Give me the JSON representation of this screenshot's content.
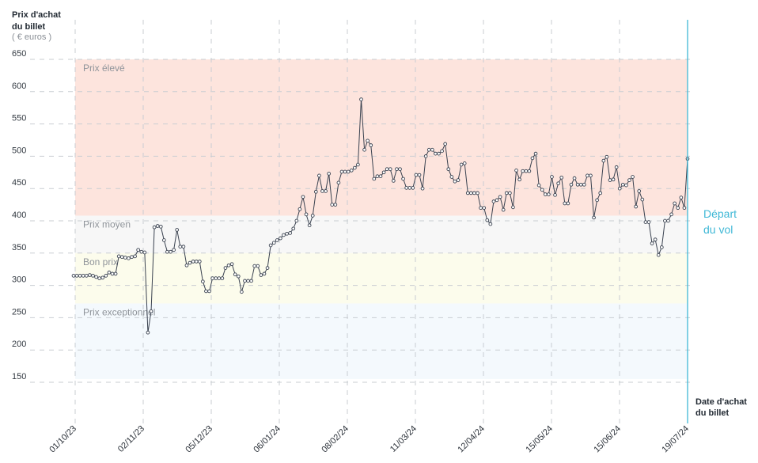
{
  "chart_data": {
    "type": "line",
    "ylabel": [
      "Prix d'achat",
      "du billet"
    ],
    "yunit": "( € euros )",
    "xlabel": [
      "Date d'achat",
      "du billet"
    ],
    "yticks": [
      150,
      200,
      250,
      300,
      350,
      400,
      450,
      500,
      550,
      600,
      650
    ],
    "xticks": [
      "01/10/23",
      "02/11/23",
      "05/12/23",
      "06/01/24",
      "08/02/24",
      "11/03/24",
      "12/04/24",
      "15/05/24",
      "15/06/24",
      "19/07/24"
    ],
    "ylim": [
      100,
      650
    ],
    "grid": true,
    "bands": [
      {
        "label": "Prix élevé",
        "from": 408,
        "to": 650,
        "color": "#fde4dd"
      },
      {
        "label": "Prix moyen",
        "from": 350,
        "to": 408,
        "color": "#f7f7f7"
      },
      {
        "label": "Bon prix",
        "from": 272,
        "to": 350,
        "color": "#fcfcec"
      },
      {
        "label": "Prix exceptionnel",
        "from": 155,
        "to": 272,
        "color": "#f4f9fd"
      }
    ],
    "annotation": [
      "Départ",
      "du vol"
    ],
    "line_color": "#3a4250",
    "depart_color": "#3fb8d6",
    "series": [
      {
        "values": [
          315,
          315,
          315,
          315,
          315,
          316,
          315,
          313,
          311,
          312,
          315,
          320,
          318,
          318,
          345,
          344,
          343,
          342,
          344,
          345,
          355,
          352,
          351,
          227,
          260,
          390,
          392,
          391,
          370,
          352,
          352,
          355,
          386,
          360,
          360,
          331,
          335,
          337,
          337,
          337,
          306,
          291,
          291,
          311,
          311,
          311,
          311,
          327,
          331,
          333,
          317,
          314,
          290,
          307,
          307,
          307,
          330,
          330,
          316,
          318,
          327,
          362,
          366,
          370,
          373,
          378,
          380,
          381,
          388,
          400,
          418,
          437,
          410,
          393,
          408,
          445,
          470,
          446,
          446,
          473,
          425,
          425,
          459,
          476,
          476,
          476,
          478,
          482,
          487,
          588,
          510,
          524,
          517,
          465,
          469,
          469,
          475,
          480,
          480,
          462,
          480,
          480,
          465,
          451,
          451,
          451,
          471,
          471,
          450,
          500,
          510,
          510,
          504,
          504,
          508,
          519,
          480,
          468,
          461,
          463,
          487,
          489,
          443,
          443,
          443,
          443,
          420,
          420,
          401,
          395,
          430,
          432,
          437,
          417,
          443,
          443,
          421,
          478,
          464,
          477,
          477,
          477,
          497,
          504,
          455,
          448,
          441,
          441,
          468,
          440,
          458,
          467,
          427,
          427,
          456,
          466,
          456,
          456,
          456,
          470,
          470,
          405,
          432,
          443,
          493,
          499,
          463,
          464,
          483,
          450,
          456,
          455,
          463,
          468,
          422,
          446,
          433,
          398,
          398,
          365,
          371,
          347,
          359,
          400,
          400,
          410,
          427,
          420,
          436,
          420,
          496
        ]
      }
    ]
  }
}
